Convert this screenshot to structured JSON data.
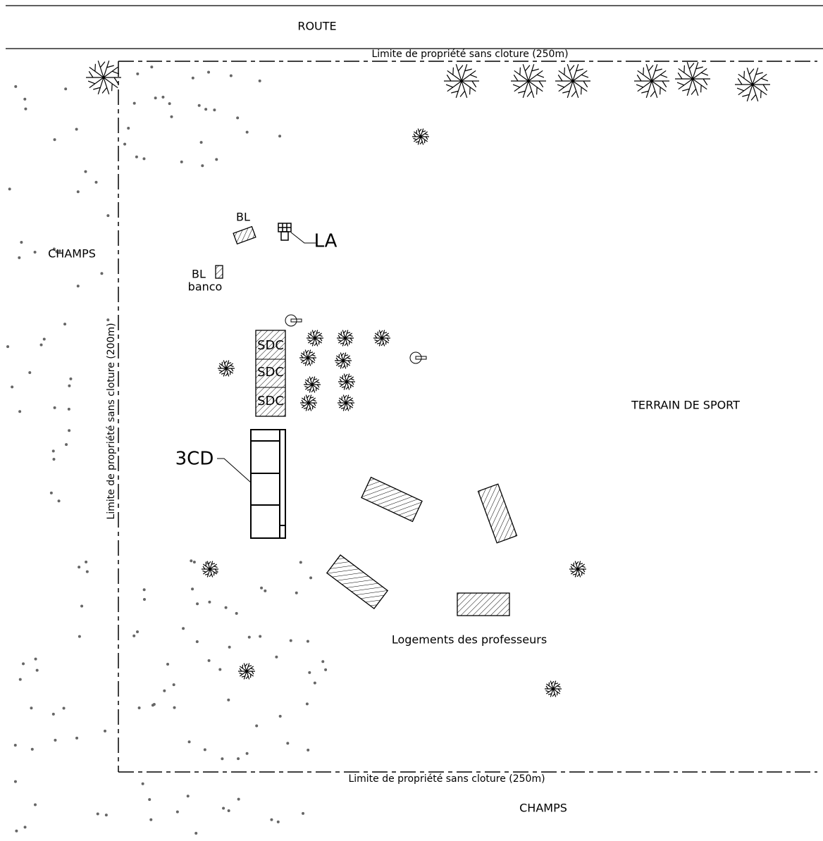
{
  "road": "ROUTE",
  "boundaries": {
    "top": "Limite de propriété sans cloture (250m)",
    "left": "Limite de propriété sans cloture (200m)",
    "bottom": "Limite de propriété sans cloture (250m)"
  },
  "fields": {
    "left": "CHAMPS",
    "bottom": "CHAMPS"
  },
  "buildings": {
    "bl1": "BL",
    "la": "LA",
    "bl2": "BL",
    "banco": "banco",
    "sdc": [
      "SDC",
      "SDC",
      "SDC"
    ],
    "cd": "3CD",
    "housing": "Logements des professeurs"
  },
  "sport": "TERRAIN DE SPORT"
}
